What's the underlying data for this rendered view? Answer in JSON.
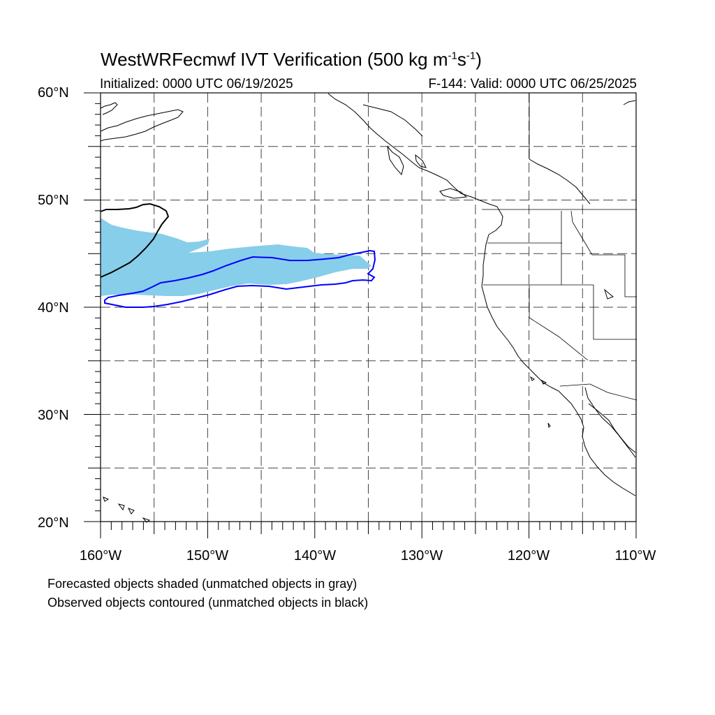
{
  "header": {
    "title_main": "WestWRFecmwf IVT Verification (500 kg m",
    "title_sup1": "-1",
    "title_mid": "s",
    "title_sup2": "-1",
    "title_end": ")",
    "initialized": "Initialized: 0000 UTC 06/19/2025",
    "valid": "F-144: Valid: 0000 UTC 06/25/2025"
  },
  "axes": {
    "lat_labels": [
      "60°N",
      "50°N",
      "40°N",
      "30°N",
      "20°N"
    ],
    "lon_labels": [
      "160°W",
      "150°W",
      "140°W",
      "130°W",
      "120°W",
      "110°W"
    ],
    "lat_range": [
      20,
      60
    ],
    "lon_range": [
      -160,
      -110
    ]
  },
  "legend": {
    "line1": "Forecasted objects shaded (unmatched objects in gray)",
    "line2": "Observed objects contoured (unmatched objects in black)"
  },
  "colors": {
    "forecast_fill": "#87ceea",
    "observed_matched": "#0000ff",
    "observed_unmatched": "#000000"
  }
}
